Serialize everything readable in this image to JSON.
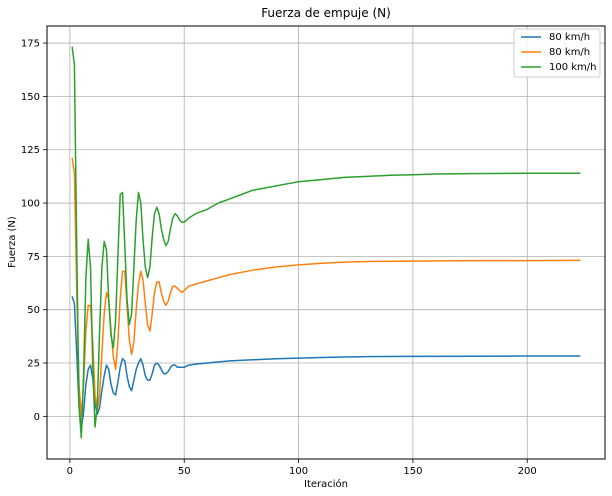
{
  "chart_data": {
    "type": "line",
    "title": "Fuerza de empuje (N)",
    "xlabel": "Iteración",
    "ylabel": "Fuerza (N)",
    "xlim": [
      -10,
      234
    ],
    "ylim": [
      -20,
      183
    ],
    "xticks": [
      0,
      50,
      100,
      150,
      200
    ],
    "yticks": [
      0,
      25,
      50,
      75,
      100,
      125,
      150,
      175
    ],
    "grid": true,
    "legend_position": "top-right",
    "series": [
      {
        "name": "80 km/h",
        "color": "#1f77b4",
        "points": [
          [
            1,
            56
          ],
          [
            2,
            53
          ],
          [
            3,
            30
          ],
          [
            4,
            5
          ],
          [
            5,
            -6
          ],
          [
            6,
            2
          ],
          [
            7,
            15
          ],
          [
            8,
            22
          ],
          [
            9,
            24
          ],
          [
            10,
            18
          ],
          [
            11,
            6
          ],
          [
            12,
            1
          ],
          [
            13,
            4
          ],
          [
            14,
            12
          ],
          [
            15,
            19
          ],
          [
            16,
            24
          ],
          [
            17,
            22
          ],
          [
            18,
            15
          ],
          [
            19,
            11
          ],
          [
            20,
            10
          ],
          [
            21,
            16
          ],
          [
            22,
            23
          ],
          [
            23,
            27
          ],
          [
            24,
            26
          ],
          [
            25,
            19
          ],
          [
            26,
            14
          ],
          [
            27,
            12
          ],
          [
            28,
            17
          ],
          [
            29,
            22
          ],
          [
            30,
            25
          ],
          [
            31,
            27
          ],
          [
            32,
            24
          ],
          [
            33,
            19
          ],
          [
            34,
            17
          ],
          [
            35,
            17
          ],
          [
            36,
            20
          ],
          [
            37,
            24
          ],
          [
            38,
            25
          ],
          [
            39,
            24
          ],
          [
            40,
            22
          ],
          [
            41,
            20
          ],
          [
            42,
            20
          ],
          [
            43,
            21
          ],
          [
            44,
            23
          ],
          [
            45,
            24
          ],
          [
            46,
            24
          ],
          [
            47,
            23
          ],
          [
            48,
            23
          ],
          [
            49,
            23
          ],
          [
            50,
            23
          ],
          [
            52,
            24
          ],
          [
            55,
            24.5
          ],
          [
            60,
            25
          ],
          [
            65,
            25.5
          ],
          [
            70,
            26
          ],
          [
            80,
            26.5
          ],
          [
            90,
            27
          ],
          [
            100,
            27.3
          ],
          [
            110,
            27.6
          ],
          [
            120,
            27.8
          ],
          [
            130,
            28
          ],
          [
            150,
            28.1
          ],
          [
            175,
            28.2
          ],
          [
            200,
            28.3
          ],
          [
            223,
            28.3
          ]
        ]
      },
      {
        "name": "80 km/h",
        "color": "#ff7f0e",
        "points": [
          [
            1,
            121
          ],
          [
            2,
            114
          ],
          [
            3,
            60
          ],
          [
            4,
            15
          ],
          [
            5,
            0
          ],
          [
            6,
            15
          ],
          [
            7,
            40
          ],
          [
            8,
            52
          ],
          [
            9,
            52
          ],
          [
            10,
            35
          ],
          [
            11,
            10
          ],
          [
            12,
            3
          ],
          [
            13,
            10
          ],
          [
            14,
            30
          ],
          [
            15,
            48
          ],
          [
            16,
            58
          ],
          [
            17,
            55
          ],
          [
            18,
            40
          ],
          [
            19,
            28
          ],
          [
            20,
            22
          ],
          [
            21,
            35
          ],
          [
            22,
            55
          ],
          [
            23,
            68
          ],
          [
            24,
            68
          ],
          [
            25,
            52
          ],
          [
            26,
            36
          ],
          [
            27,
            29
          ],
          [
            28,
            35
          ],
          [
            29,
            50
          ],
          [
            30,
            62
          ],
          [
            31,
            68
          ],
          [
            32,
            64
          ],
          [
            33,
            53
          ],
          [
            34,
            43
          ],
          [
            35,
            40
          ],
          [
            36,
            48
          ],
          [
            37,
            58
          ],
          [
            38,
            63
          ],
          [
            39,
            63
          ],
          [
            40,
            58
          ],
          [
            41,
            54
          ],
          [
            42,
            52
          ],
          [
            43,
            54
          ],
          [
            44,
            58
          ],
          [
            45,
            61
          ],
          [
            46,
            61
          ],
          [
            47,
            60
          ],
          [
            48,
            59
          ],
          [
            49,
            58
          ],
          [
            50,
            59
          ],
          [
            52,
            61
          ],
          [
            55,
            62
          ],
          [
            60,
            63.5
          ],
          [
            65,
            65
          ],
          [
            70,
            66.5
          ],
          [
            80,
            68.5
          ],
          [
            90,
            70
          ],
          [
            100,
            71
          ],
          [
            110,
            71.8
          ],
          [
            120,
            72.3
          ],
          [
            130,
            72.6
          ],
          [
            150,
            72.8
          ],
          [
            175,
            73
          ],
          [
            200,
            73
          ],
          [
            223,
            73.1
          ]
        ]
      },
      {
        "name": "100 km/h",
        "color": "#2ca02c",
        "points": [
          [
            1,
            173
          ],
          [
            2,
            165
          ],
          [
            3,
            80
          ],
          [
            4,
            5
          ],
          [
            5,
            -10
          ],
          [
            6,
            20
          ],
          [
            7,
            65
          ],
          [
            8,
            83
          ],
          [
            9,
            70
          ],
          [
            10,
            25
          ],
          [
            11,
            -5
          ],
          [
            12,
            5
          ],
          [
            13,
            40
          ],
          [
            14,
            70
          ],
          [
            15,
            82
          ],
          [
            16,
            78
          ],
          [
            17,
            55
          ],
          [
            18,
            38
          ],
          [
            19,
            32
          ],
          [
            20,
            45
          ],
          [
            21,
            75
          ],
          [
            22,
            104
          ],
          [
            23,
            105
          ],
          [
            24,
            80
          ],
          [
            25,
            55
          ],
          [
            26,
            43
          ],
          [
            27,
            48
          ],
          [
            28,
            70
          ],
          [
            29,
            92
          ],
          [
            30,
            105
          ],
          [
            31,
            100
          ],
          [
            32,
            83
          ],
          [
            33,
            70
          ],
          [
            34,
            65
          ],
          [
            35,
            70
          ],
          [
            36,
            84
          ],
          [
            37,
            95
          ],
          [
            38,
            98
          ],
          [
            39,
            95
          ],
          [
            40,
            88
          ],
          [
            41,
            83
          ],
          [
            42,
            80
          ],
          [
            43,
            82
          ],
          [
            44,
            88
          ],
          [
            45,
            93
          ],
          [
            46,
            95
          ],
          [
            47,
            94
          ],
          [
            48,
            92
          ],
          [
            49,
            91
          ],
          [
            50,
            91
          ],
          [
            52,
            93
          ],
          [
            55,
            95
          ],
          [
            60,
            97
          ],
          [
            65,
            100
          ],
          [
            70,
            102
          ],
          [
            75,
            104
          ],
          [
            80,
            106
          ],
          [
            85,
            107
          ],
          [
            90,
            108
          ],
          [
            95,
            109
          ],
          [
            100,
            110
          ],
          [
            110,
            111
          ],
          [
            120,
            112
          ],
          [
            130,
            112.5
          ],
          [
            140,
            113
          ],
          [
            150,
            113.3
          ],
          [
            160,
            113.6
          ],
          [
            175,
            113.8
          ],
          [
            200,
            114
          ],
          [
            223,
            114
          ]
        ]
      }
    ]
  }
}
